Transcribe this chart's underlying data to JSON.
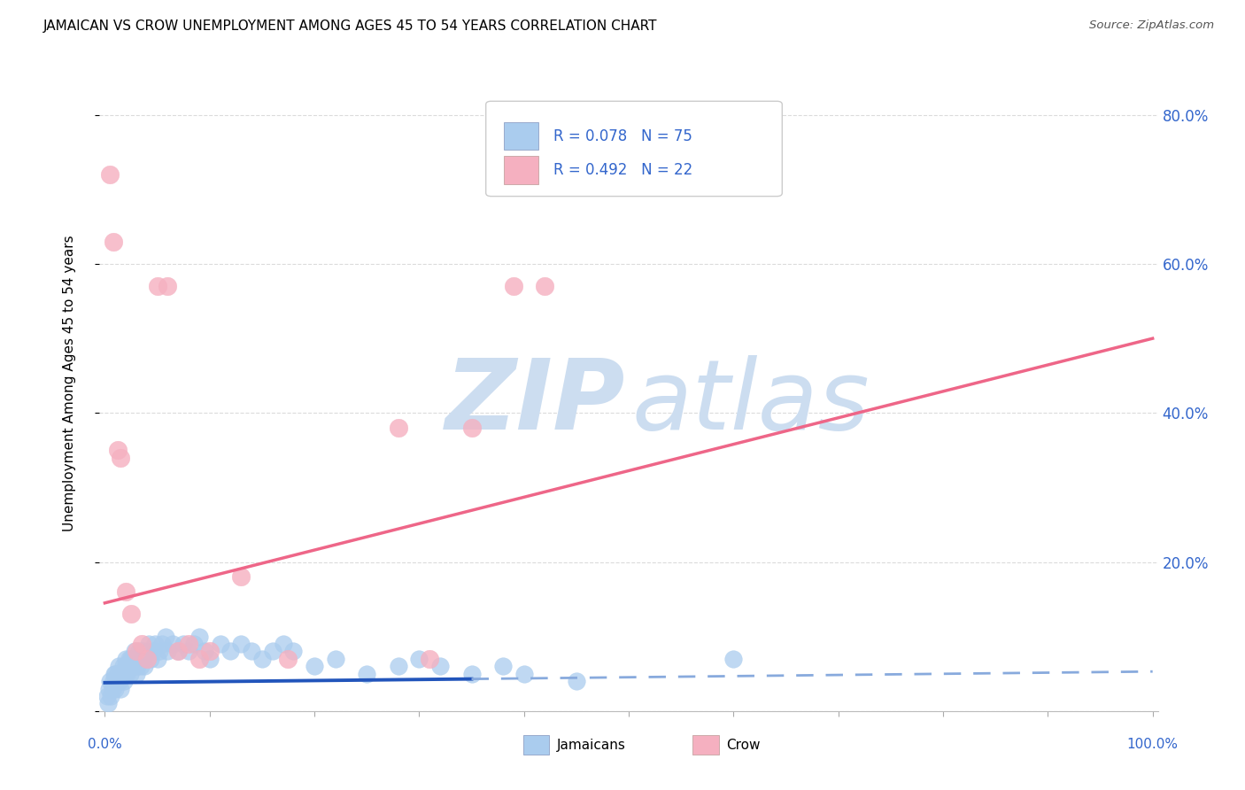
{
  "title": "JAMAICAN VS CROW UNEMPLOYMENT AMONG AGES 45 TO 54 YEARS CORRELATION CHART",
  "source": "Source: ZipAtlas.com",
  "ylabel": "Unemployment Among Ages 45 to 54 years",
  "legend_label1": "Jamaicans",
  "legend_label2": "Crow",
  "blue_scatter_color": "#aaccee",
  "blue_line_color_solid": "#2255bb",
  "blue_line_color_dash": "#88aadd",
  "pink_scatter_color": "#f5b0c0",
  "pink_line_color": "#ee6688",
  "watermark_color": "#ccddf0",
  "legend_text_color": "#3366cc",
  "right_axis_color": "#3366cc",
  "xlabel_color": "#3366cc",
  "jamaican_x": [
    0.002,
    0.003,
    0.004,
    0.005,
    0.006,
    0.007,
    0.008,
    0.009,
    0.01,
    0.01,
    0.011,
    0.012,
    0.013,
    0.014,
    0.015,
    0.016,
    0.017,
    0.018,
    0.019,
    0.02,
    0.02,
    0.021,
    0.022,
    0.023,
    0.024,
    0.025,
    0.026,
    0.027,
    0.028,
    0.03,
    0.031,
    0.032,
    0.033,
    0.034,
    0.035,
    0.036,
    0.037,
    0.038,
    0.04,
    0.042,
    0.044,
    0.046,
    0.048,
    0.05,
    0.052,
    0.055,
    0.058,
    0.06,
    0.065,
    0.07,
    0.075,
    0.08,
    0.085,
    0.09,
    0.095,
    0.1,
    0.11,
    0.12,
    0.13,
    0.14,
    0.15,
    0.16,
    0.17,
    0.18,
    0.2,
    0.22,
    0.25,
    0.28,
    0.3,
    0.32,
    0.35,
    0.38,
    0.4,
    0.45,
    0.6
  ],
  "jamaican_y": [
    0.02,
    0.01,
    0.03,
    0.04,
    0.02,
    0.03,
    0.04,
    0.05,
    0.03,
    0.05,
    0.04,
    0.05,
    0.06,
    0.04,
    0.03,
    0.05,
    0.06,
    0.04,
    0.05,
    0.06,
    0.07,
    0.05,
    0.06,
    0.07,
    0.05,
    0.07,
    0.06,
    0.07,
    0.08,
    0.05,
    0.06,
    0.07,
    0.08,
    0.06,
    0.07,
    0.08,
    0.07,
    0.06,
    0.08,
    0.09,
    0.07,
    0.08,
    0.09,
    0.07,
    0.08,
    0.09,
    0.1,
    0.08,
    0.09,
    0.08,
    0.09,
    0.08,
    0.09,
    0.1,
    0.08,
    0.07,
    0.09,
    0.08,
    0.09,
    0.08,
    0.07,
    0.08,
    0.09,
    0.08,
    0.06,
    0.07,
    0.05,
    0.06,
    0.07,
    0.06,
    0.05,
    0.06,
    0.05,
    0.04,
    0.07
  ],
  "crow_x": [
    0.005,
    0.008,
    0.012,
    0.015,
    0.02,
    0.025,
    0.03,
    0.035,
    0.04,
    0.05,
    0.06,
    0.07,
    0.08,
    0.09,
    0.1,
    0.13,
    0.175,
    0.28,
    0.31,
    0.35,
    0.39,
    0.42
  ],
  "crow_y": [
    0.72,
    0.63,
    0.35,
    0.34,
    0.16,
    0.13,
    0.08,
    0.09,
    0.07,
    0.57,
    0.57,
    0.08,
    0.09,
    0.07,
    0.08,
    0.18,
    0.07,
    0.38,
    0.07,
    0.38,
    0.57,
    0.57
  ],
  "pink_line_x0": 0.0,
  "pink_line_y0": 0.145,
  "pink_line_x1": 1.0,
  "pink_line_y1": 0.5,
  "blue_line_x0": 0.0,
  "blue_line_y0": 0.038,
  "blue_line_x1_solid": 0.35,
  "blue_line_y1_solid": 0.043,
  "blue_line_x1_dash": 1.0,
  "blue_line_y1_dash": 0.053,
  "ylim": [
    0,
    0.88
  ],
  "xlim": [
    -0.005,
    1.005
  ],
  "yticks": [
    0.0,
    0.2,
    0.4,
    0.6,
    0.8
  ],
  "ytick_labels": [
    "",
    "20.0%",
    "40.0%",
    "60.0%",
    "80.0%"
  ],
  "xticks": [
    0,
    0.1,
    0.2,
    0.3,
    0.4,
    0.5,
    0.6,
    0.7,
    0.8,
    0.9,
    1.0
  ],
  "grid_color": "#cccccc"
}
